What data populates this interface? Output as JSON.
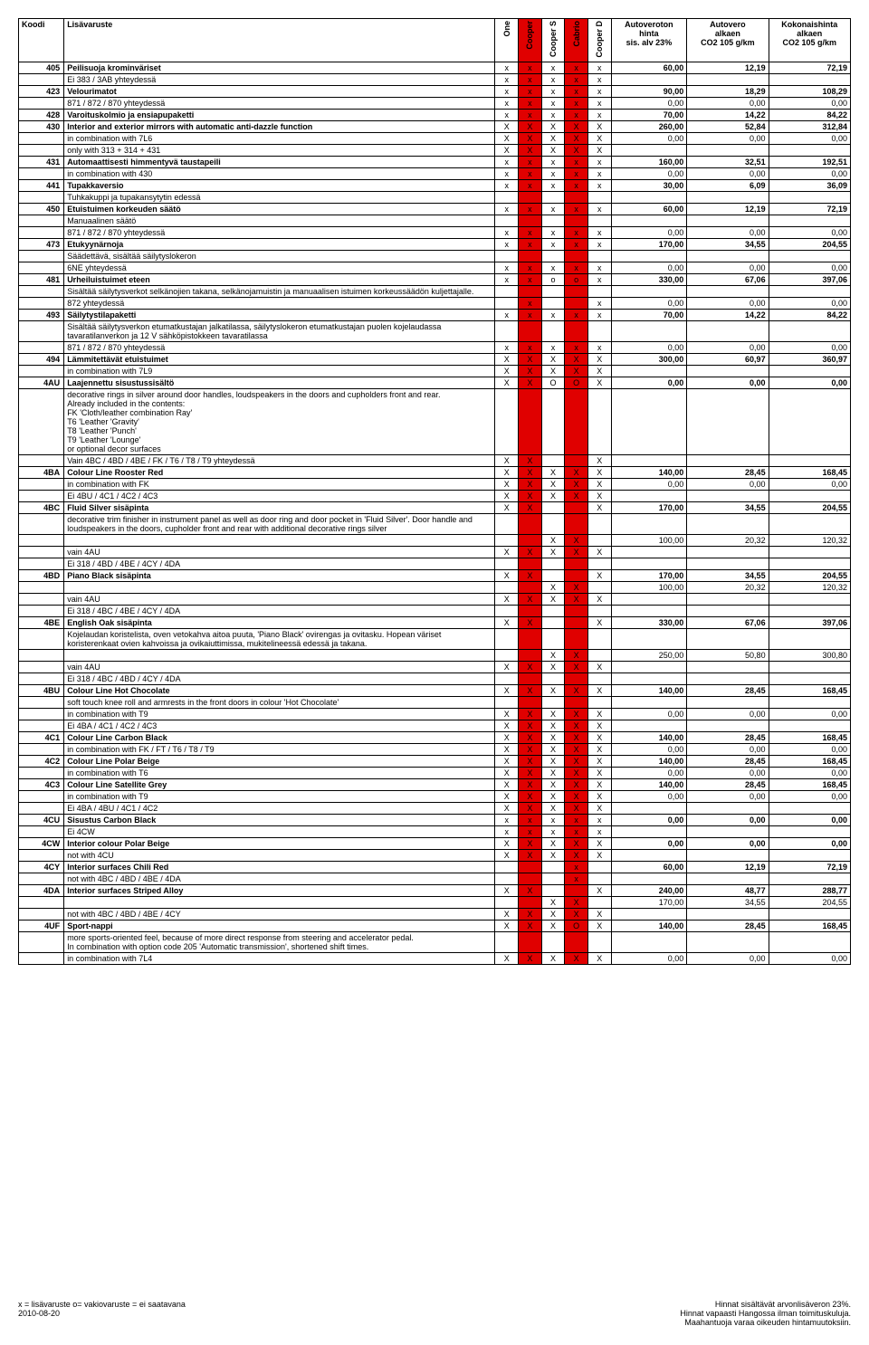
{
  "header": {
    "koodi": "Koodi",
    "lisavaruste": "Lisävaruste",
    "cols": [
      "One",
      "Cooper",
      "Cooper S",
      "Cabrio",
      "Cooper D"
    ],
    "p1": "Autoveroton\nhinta\nsis. alv 23%",
    "p2": "Autovero\nalkaen\nCO2 105 g/km",
    "p3": "Kokonaishinta\nalkaen\nCO2 105 g/km"
  },
  "rows": [
    {
      "code": "405",
      "desc": "Peilisuoja krominväriset",
      "m": [
        "x",
        "x",
        "x",
        "x",
        "x"
      ],
      "p": [
        "60,00",
        "12,19",
        "72,19"
      ],
      "bold": true
    },
    {
      "desc": "Ei 383 / 3AB yhteydessä",
      "m": [
        "x",
        "x",
        "x",
        "x",
        "x"
      ],
      "p": [
        "",
        "",
        ""
      ]
    },
    {
      "code": "423",
      "desc": "Velourimatot",
      "m": [
        "x",
        "x",
        "x",
        "x",
        "x"
      ],
      "p": [
        "90,00",
        "18,29",
        "108,29"
      ],
      "bold": true
    },
    {
      "desc": "871 / 872 / 870 yhteydessä",
      "m": [
        "x",
        "x",
        "x",
        "x",
        "x"
      ],
      "p": [
        "0,00",
        "0,00",
        "0,00"
      ]
    },
    {
      "code": "428",
      "desc": "Varoituskolmio ja ensiapupaketti",
      "m": [
        "x",
        "x",
        "x",
        "x",
        "x"
      ],
      "p": [
        "70,00",
        "14,22",
        "84,22"
      ],
      "bold": true
    },
    {
      "code": "430",
      "desc": "Interior and exterior mirrors with automatic anti-dazzle function",
      "m": [
        "X",
        "X",
        "X",
        "X",
        "X"
      ],
      "p": [
        "260,00",
        "52,84",
        "312,84"
      ],
      "bold": true
    },
    {
      "desc": "in combination with 7L6",
      "m": [
        "X",
        "X",
        "X",
        "X",
        "X"
      ],
      "p": [
        "0,00",
        "0,00",
        "0,00"
      ]
    },
    {
      "desc": "only with 313 + 314 + 431",
      "m": [
        "X",
        "X",
        "X",
        "X",
        "X"
      ],
      "p": [
        "",
        "",
        ""
      ]
    },
    {
      "code": "431",
      "desc": "Automaattisesti himmentyvä taustapeili",
      "m": [
        "x",
        "x",
        "x",
        "x",
        "x"
      ],
      "p": [
        "160,00",
        "32,51",
        "192,51"
      ],
      "bold": true
    },
    {
      "desc": "in combination with 430",
      "m": [
        "x",
        "x",
        "x",
        "x",
        "x"
      ],
      "p": [
        "0,00",
        "0,00",
        "0,00"
      ]
    },
    {
      "code": "441",
      "desc": "Tupakkaversio",
      "m": [
        "x",
        "x",
        "x",
        "x",
        "x"
      ],
      "p": [
        "30,00",
        "6,09",
        "36,09"
      ],
      "bold": true
    },
    {
      "desc": "Tuhkakuppi ja tupakansytytin edessä",
      "m": [
        "",
        "",
        "",
        "",
        ""
      ],
      "p": [
        "",
        "",
        ""
      ]
    },
    {
      "code": "450",
      "desc": "Etuistuimen korkeuden säätö",
      "m": [
        "x",
        "x",
        "x",
        "x",
        "x"
      ],
      "p": [
        "60,00",
        "12,19",
        "72,19"
      ],
      "bold": true
    },
    {
      "desc": "Manuaalinen säätö",
      "m": [
        "",
        "",
        "",
        "",
        ""
      ],
      "p": [
        "",
        "",
        ""
      ]
    },
    {
      "desc": "871 / 872 / 870 yhteydessä",
      "m": [
        "x",
        "x",
        "x",
        "x",
        "x"
      ],
      "p": [
        "0,00",
        "0,00",
        "0,00"
      ]
    },
    {
      "code": "473",
      "desc": "Etukyynärnoja",
      "m": [
        "x",
        "x",
        "x",
        "x",
        "x"
      ],
      "p": [
        "170,00",
        "34,55",
        "204,55"
      ],
      "bold": true
    },
    {
      "desc": "Säädettävä, sisältää säilytyslokeron",
      "m": [
        "",
        "",
        "",
        "",
        ""
      ],
      "p": [
        "",
        "",
        ""
      ]
    },
    {
      "desc": "6NE yhteydessä",
      "m": [
        "x",
        "x",
        "x",
        "x",
        "x"
      ],
      "p": [
        "0,00",
        "0,00",
        "0,00"
      ]
    },
    {
      "code": "481",
      "desc": "Urheiluistuimet eteen",
      "m": [
        "x",
        "x",
        "o",
        "o",
        "x"
      ],
      "p": [
        "330,00",
        "67,06",
        "397,06"
      ],
      "bold": true
    },
    {
      "desc": "Sisältää säilytysverkot selkänojien takana, selkänojamuistin ja manuaalisen istuimen korkeussäädön kuljettajalle.",
      "m": [
        "",
        "",
        "",
        "",
        ""
      ],
      "p": [
        "",
        "",
        ""
      ],
      "span": true
    },
    {
      "desc": "872 yhteydessä",
      "m": [
        "",
        "x",
        "",
        "",
        "x"
      ],
      "p": [
        "0,00",
        "0,00",
        "0,00"
      ]
    },
    {
      "code": "493",
      "desc": "Säilytystilapaketti",
      "m": [
        "x",
        "x",
        "x",
        "x",
        "x"
      ],
      "p": [
        "70,00",
        "14,22",
        "84,22"
      ],
      "bold": true
    },
    {
      "desc": "Sisältää säilytysverkon etumatkustajan jalkatilassa, säilytyslokeron etumatkustajan puolen kojelaudassa tavaratilanverkon ja 12 V sähköpistokkeen tavaratilassa",
      "m": [
        "",
        "",
        "",
        "",
        ""
      ],
      "p": [
        "",
        "",
        ""
      ],
      "span": true
    },
    {
      "desc": "871 / 872 / 870 yhteydessä",
      "m": [
        "x",
        "x",
        "x",
        "x",
        "x"
      ],
      "p": [
        "0,00",
        "0,00",
        "0,00"
      ]
    },
    {
      "code": "494",
      "desc": "Lämmitettävät etuistuimet",
      "m": [
        "X",
        "X",
        "X",
        "X",
        "X"
      ],
      "p": [
        "300,00",
        "60,97",
        "360,97"
      ],
      "bold": true
    },
    {
      "desc": "in combination with 7L9",
      "m": [
        "X",
        "X",
        "X",
        "X",
        "X"
      ],
      "p": [
        "",
        "",
        ""
      ]
    },
    {
      "code": "4AU",
      "desc": "Laajennettu sisustussisältö",
      "m": [
        "X",
        "X",
        "O",
        "O",
        "X"
      ],
      "p": [
        "0,00",
        "0,00",
        "0,00"
      ],
      "bold": true
    },
    {
      "desc": " decorative rings in silver around door handles, loudspeakers in the doors and cupholders front and rear.\nAlready included in the contents:\nFK 'Cloth/leather combination Ray'\nT6 'Leather 'Gravity'\nT8 'Leather 'Punch'\nT9 'Leather 'Lounge'\nor optional decor surfaces\n ",
      "m": [
        "",
        "",
        "",
        "",
        ""
      ],
      "p": [
        "",
        "",
        ""
      ],
      "span": true,
      "tall": true
    },
    {
      "desc": "Vain 4BC / 4BD / 4BE / FK / T6 / T8 / T9 yhteydessä",
      "m": [
        "X",
        "X",
        "",
        "",
        "X"
      ],
      "p": [
        "",
        "",
        ""
      ]
    },
    {
      "code": "4BA",
      "desc": "Colour Line Rooster Red",
      "m": [
        "X",
        "X",
        "X",
        "X",
        "X"
      ],
      "p": [
        "140,00",
        "28,45",
        "168,45"
      ],
      "bold": true
    },
    {
      "desc": "in combination with FK",
      "m": [
        "X",
        "X",
        "X",
        "X",
        "X"
      ],
      "p": [
        "0,00",
        "0,00",
        "0,00"
      ]
    },
    {
      "desc": "Ei 4BU / 4C1 / 4C2 / 4C3",
      "m": [
        "X",
        "X",
        "X",
        "X",
        "X"
      ],
      "p": [
        "",
        "",
        ""
      ]
    },
    {
      "code": "4BC",
      "desc": "Fluid Silver sisäpinta",
      "m": [
        "X",
        "X",
        "",
        "",
        "X"
      ],
      "p": [
        "170,00",
        "34,55",
        "204,55"
      ],
      "bold": true
    },
    {
      "desc": "decorative trim finisher in instrument panel as well as door ring and door pocket in 'Fluid Silver'. Door handle and loudspeakers in the doors, cupholder front and rear with additional decorative rings silver\n ",
      "m": [
        "",
        "",
        "",
        "",
        ""
      ],
      "p": [
        "",
        "",
        ""
      ],
      "span": true,
      "tall2": true
    },
    {
      "desc": "",
      "m": [
        "",
        "",
        "X",
        "X",
        ""
      ],
      "p": [
        "100,00",
        "20,32",
        "120,32"
      ]
    },
    {
      "desc": "vain 4AU",
      "m": [
        "X",
        "X",
        "X",
        "X",
        "X"
      ],
      "p": [
        "",
        "",
        ""
      ]
    },
    {
      "desc": "Ei 318 / 4BD / 4BE / 4CY / 4DA",
      "m": [
        "",
        "",
        "",
        "",
        ""
      ],
      "p": [
        "",
        "",
        ""
      ]
    },
    {
      "code": "4BD",
      "desc": "Piano Black sisäpinta",
      "m": [
        "X",
        "X",
        "",
        "",
        "X"
      ],
      "p": [
        "170,00",
        "34,55",
        "204,55"
      ],
      "bold": true
    },
    {
      "desc": "",
      "m": [
        "",
        "",
        "X",
        "X",
        ""
      ],
      "p": [
        "100,00",
        "20,32",
        "120,32"
      ]
    },
    {
      "desc": "vain 4AU",
      "m": [
        "X",
        "X",
        "X",
        "X",
        "X"
      ],
      "p": [
        "",
        "",
        ""
      ]
    },
    {
      "desc": "Ei 318 / 4BC / 4BE / 4CY / 4DA",
      "m": [
        "",
        "",
        "",
        "",
        ""
      ],
      "p": [
        "",
        "",
        ""
      ]
    },
    {
      "code": "4BE",
      "desc": "English Oak sisäpinta",
      "m": [
        "X",
        "X",
        "",
        "",
        "X"
      ],
      "p": [
        "330,00",
        "67,06",
        "397,06"
      ],
      "bold": true
    },
    {
      "desc": "Kojelaudan koristelista, oven vetokahva aitoa puuta, 'Piano Black' ovirengas ja ovitasku. Hopean väriset koristerenkaat ovien kahvoissa ja ovikaiuttimissa, mukitelineessä edessä ja takana.",
      "m": [
        "",
        "",
        "",
        "",
        ""
      ],
      "p": [
        "",
        "",
        ""
      ],
      "span": true
    },
    {
      "desc": "",
      "m": [
        "",
        "",
        "X",
        "X",
        ""
      ],
      "p": [
        "250,00",
        "50,80",
        "300,80"
      ]
    },
    {
      "desc": "vain 4AU",
      "m": [
        "X",
        "X",
        "X",
        "X",
        "X"
      ],
      "p": [
        "",
        "",
        ""
      ]
    },
    {
      "desc": "Ei 318 / 4BC / 4BD / 4CY / 4DA",
      "m": [
        "",
        "",
        "",
        "",
        ""
      ],
      "p": [
        "",
        "",
        ""
      ]
    },
    {
      "code": "4BU",
      "desc": "Colour Line Hot Chocolate",
      "m": [
        "X",
        "X",
        "X",
        "X",
        "X"
      ],
      "p": [
        "140,00",
        "28,45",
        "168,45"
      ],
      "bold": true
    },
    {
      "desc": "soft touch knee roll and armrests in the front doors in colour 'Hot Chocolate'",
      "m": [
        "",
        "",
        "",
        "",
        ""
      ],
      "p": [
        "",
        "",
        ""
      ]
    },
    {
      "desc": "in combination with T9",
      "m": [
        "X",
        "X",
        "X",
        "X",
        "X"
      ],
      "p": [
        "0,00",
        "0,00",
        "0,00"
      ]
    },
    {
      "desc": "Ei 4BA / 4C1 / 4C2 / 4C3",
      "m": [
        "X",
        "X",
        "X",
        "X",
        "X"
      ],
      "p": [
        "",
        "",
        ""
      ]
    },
    {
      "code": "4C1",
      "desc": "Colour Line Carbon Black",
      "m": [
        "X",
        "X",
        "X",
        "X",
        "X"
      ],
      "p": [
        "140,00",
        "28,45",
        "168,45"
      ],
      "bold": true
    },
    {
      "desc": "in combination with FK / FT / T6 / T8 / T9",
      "m": [
        "X",
        "X",
        "X",
        "X",
        "X"
      ],
      "p": [
        "0,00",
        "0,00",
        "0,00"
      ]
    },
    {
      "code": "4C2",
      "desc": "Colour Line Polar Beige",
      "m": [
        "X",
        "X",
        "X",
        "X",
        "X"
      ],
      "p": [
        "140,00",
        "28,45",
        "168,45"
      ],
      "bold": true
    },
    {
      "desc": "in combination with T6",
      "m": [
        "X",
        "X",
        "X",
        "X",
        "X"
      ],
      "p": [
        "0,00",
        "0,00",
        "0,00"
      ]
    },
    {
      "code": "4C3",
      "desc": "Colour Line Satellite Grey",
      "m": [
        "X",
        "X",
        "X",
        "X",
        "X"
      ],
      "p": [
        "140,00",
        "28,45",
        "168,45"
      ],
      "bold": true
    },
    {
      "desc": "in combination with T9",
      "m": [
        "X",
        "X",
        "X",
        "X",
        "X"
      ],
      "p": [
        "0,00",
        "0,00",
        "0,00"
      ]
    },
    {
      "desc": "Ei 4BA / 4BU / 4C1 / 4C2",
      "m": [
        "X",
        "X",
        "X",
        "X",
        "X"
      ],
      "p": [
        "",
        "",
        ""
      ]
    },
    {
      "code": "4CU",
      "desc": "Sisustus Carbon Black",
      "m": [
        "x",
        "x",
        "x",
        "x",
        "x"
      ],
      "p": [
        "0,00",
        "0,00",
        "0,00"
      ],
      "bold": true
    },
    {
      "desc": "Ei 4CW",
      "m": [
        "x",
        "x",
        "x",
        "x",
        "x"
      ],
      "p": [
        "",
        "",
        ""
      ]
    },
    {
      "code": "4CW",
      "desc": "Interior colour Polar Beige",
      "m": [
        "X",
        "X",
        "X",
        "X",
        "X"
      ],
      "p": [
        "0,00",
        "0,00",
        "0,00"
      ],
      "bold": true
    },
    {
      "desc": "not with 4CU",
      "m": [
        "X",
        "X",
        "X",
        "X",
        "X"
      ],
      "p": [
        "",
        "",
        ""
      ]
    },
    {
      "code": "4CY",
      "desc": "Interior surfaces Chili Red",
      "m": [
        "",
        "",
        "",
        "x",
        ""
      ],
      "p": [
        "60,00",
        "12,19",
        "72,19"
      ],
      "bold": true
    },
    {
      "desc": "not with 4BC / 4BD / 4BE / 4DA",
      "m": [
        "",
        "",
        "",
        "x",
        ""
      ],
      "p": [
        "",
        "",
        ""
      ]
    },
    {
      "code": "4DA",
      "desc": "Interior surfaces Striped Alloy",
      "m": [
        "X",
        "X",
        "",
        "",
        "X"
      ],
      "p": [
        "240,00",
        "48,77",
        "288,77"
      ],
      "bold": true
    },
    {
      "desc": "",
      "m": [
        "",
        "",
        "X",
        "X",
        ""
      ],
      "p": [
        "170,00",
        "34,55",
        "204,55"
      ]
    },
    {
      "desc": "not with 4BC / 4BD / 4BE / 4CY",
      "m": [
        "X",
        "X",
        "X",
        "X",
        "X"
      ],
      "p": [
        "",
        "",
        ""
      ]
    },
    {
      "code": "4UF",
      "desc": "Sport-nappi",
      "m": [
        "X",
        "X",
        "X",
        "O",
        "X"
      ],
      "p": [
        "140,00",
        "28,45",
        "168,45"
      ],
      "bold": true
    },
    {
      "desc": "more sports-oriented feel, because of more direct response from steering and accelerator pedal.\nIn combination with option code 205 'Automatic transmission', shortened shift times.",
      "m": [
        "",
        "",
        "",
        "",
        ""
      ],
      "p": [
        "",
        "",
        ""
      ],
      "span": true
    },
    {
      "desc": "in combination with 7L4",
      "m": [
        "X",
        "X",
        "X",
        "X",
        "X"
      ],
      "p": [
        "0,00",
        "0,00",
        "0,00"
      ]
    }
  ],
  "footer": {
    "left1": "x = lisävaruste o= vakiovaruste   = ei saatavana",
    "left2": "2010-08-20",
    "right1": "Hinnat sisältävät arvonlisäveron 23%.",
    "right2": "Hinnat vapaasti Hangossa ilman toimituskuluja.",
    "right3": "Maahantuoja varaa oikeuden hintamuutoksiin."
  },
  "redCols": [
    1,
    3
  ]
}
